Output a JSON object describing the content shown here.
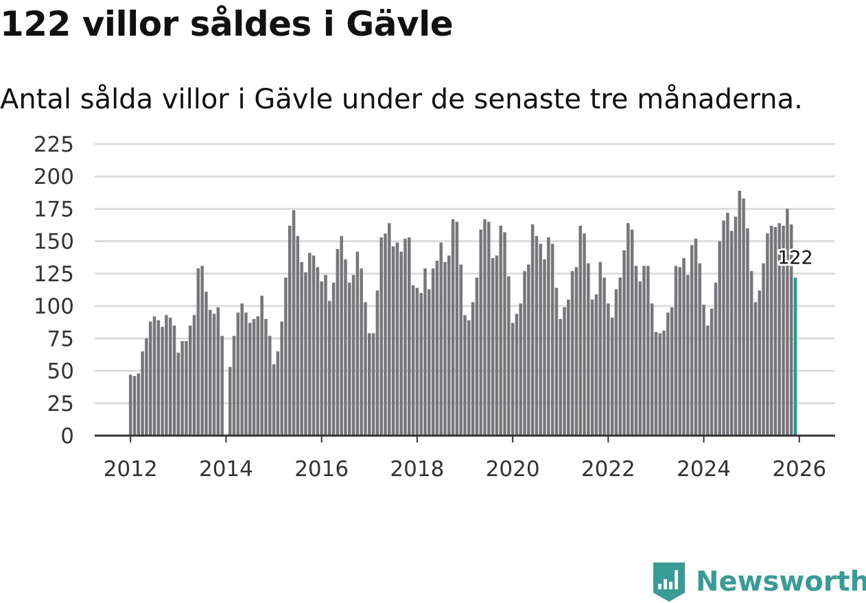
{
  "title": "122 villor såldes i Gävle",
  "subtitle": "Antal sålda villor i Gävle under de senaste tre månaderna.",
  "brand": {
    "name": "Newsworthy",
    "logo_icon": "bar-chart-tag-icon",
    "color": "#3a9a96"
  },
  "colors": {
    "bar": "#77777b",
    "highlight": "#1a9e93",
    "grid": "#dddddd",
    "axis": "#333333"
  },
  "chart_data": {
    "type": "bar",
    "title": "122 villor såldes i Gävle",
    "subtitle": "Antal sålda villor i Gävle under de senaste tre månaderna.",
    "xlabel": "",
    "ylabel": "",
    "x_start": 2012.0,
    "x_step": 0.0833333,
    "xlim": [
      2011.25,
      2026.75
    ],
    "ylim": [
      0,
      225
    ],
    "yticks": [
      0,
      25,
      50,
      75,
      100,
      125,
      150,
      175,
      200,
      225
    ],
    "xticks": [
      2012,
      2014,
      2016,
      2018,
      2020,
      2022,
      2024,
      2026
    ],
    "grid": true,
    "values": [
      47,
      46,
      48,
      65,
      75,
      88,
      92,
      89,
      84,
      93,
      91,
      85,
      64,
      73,
      73,
      85,
      93,
      129,
      131,
      111,
      97,
      94,
      99,
      77,
      null,
      53,
      77,
      95,
      102,
      95,
      87,
      90,
      92,
      108,
      90,
      77,
      55,
      65,
      88,
      122,
      162,
      174,
      154,
      134,
      126,
      141,
      139,
      130,
      119,
      124,
      104,
      118,
      144,
      154,
      136,
      118,
      124,
      142,
      129,
      103,
      79,
      79,
      112,
      153,
      156,
      164,
      146,
      149,
      142,
      152,
      153,
      116,
      114,
      110,
      129,
      113,
      129,
      135,
      149,
      134,
      139,
      167,
      165,
      132,
      93,
      89,
      103,
      122,
      159,
      167,
      165,
      137,
      139,
      162,
      157,
      123,
      87,
      94,
      102,
      127,
      132,
      163,
      154,
      148,
      136,
      153,
      148,
      114,
      90,
      99,
      105,
      127,
      130,
      162,
      156,
      133,
      105,
      109,
      134,
      122,
      102,
      91,
      113,
      122,
      143,
      164,
      159,
      131,
      119,
      131,
      131,
      102,
      80,
      79,
      81,
      95,
      99,
      131,
      130,
      137,
      124,
      147,
      152,
      133,
      101,
      85,
      98,
      118,
      150,
      166,
      172,
      158,
      169,
      189,
      183,
      160,
      127,
      103,
      112,
      133,
      156,
      162,
      161,
      164,
      162,
      175,
      163,
      122
    ],
    "highlight_last": true,
    "annotation": {
      "label": "122",
      "value": 122
    }
  }
}
